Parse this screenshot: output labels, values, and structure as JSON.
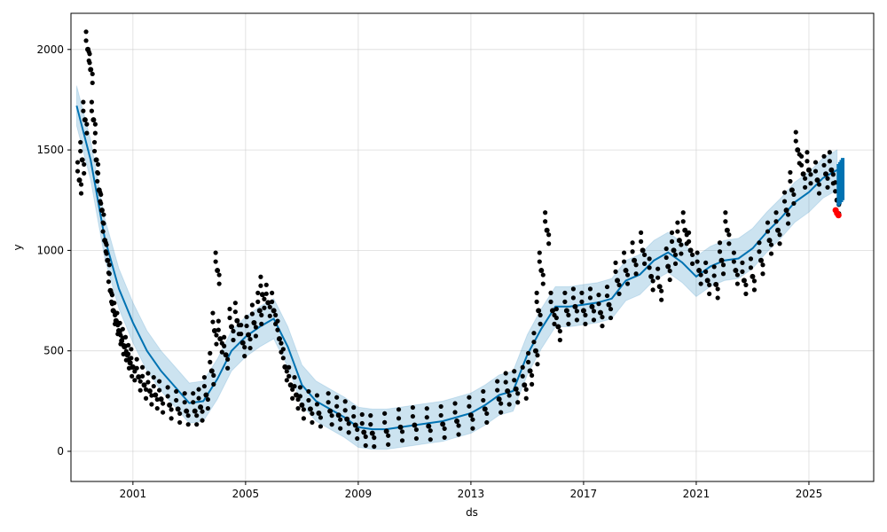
{
  "chart_data": {
    "type": "line",
    "title": "",
    "xlabel": "ds",
    "ylabel": "y",
    "xlim": [
      1998.8,
      2027.3
    ],
    "ylim": [
      -150,
      2180
    ],
    "grid": true,
    "legend": "none",
    "x_ticks": [
      {
        "value": 2001,
        "label": "2001"
      },
      {
        "value": 2005,
        "label": "2005"
      },
      {
        "value": 2009,
        "label": "2009"
      },
      {
        "value": 2013,
        "label": "2013"
      },
      {
        "value": 2017,
        "label": "2017"
      },
      {
        "value": 2021,
        "label": "2021"
      },
      {
        "value": 2025,
        "label": "2025"
      }
    ],
    "y_ticks": [
      {
        "value": 0,
        "label": "0"
      },
      {
        "value": 500,
        "label": "500"
      },
      {
        "value": 1000,
        "label": "1000"
      },
      {
        "value": 1500,
        "label": "1500"
      },
      {
        "value": 2000,
        "label": "2000"
      }
    ],
    "colors": {
      "observed": "#000000",
      "forecast_line": "#0072B2",
      "uncertainty_band": "#0072B2",
      "highlight": "#ff0000",
      "grid": "#cccccc"
    },
    "series": [
      {
        "name": "",
        "kind": "observed_points",
        "x": [
          1999.1,
          1999.2,
          1999.3,
          1999.4,
          1999.5,
          1999.6,
          1999.7,
          1999.8,
          1999.9,
          2000.0,
          2000.1,
          2000.2,
          2000.3,
          2000.4,
          2000.5,
          2000.6,
          2000.7,
          2000.8,
          2000.9,
          2001.0,
          2001.2,
          2001.4,
          2001.6,
          2001.8,
          2002.0,
          2002.3,
          2002.6,
          2002.9,
          2003.2,
          2003.4,
          2003.6,
          2003.8,
          2003.9,
          2004.0,
          2004.1,
          2004.3,
          2004.5,
          2004.7,
          2004.9,
          2005.1,
          2005.3,
          2005.5,
          2005.6,
          2005.8,
          2006.0,
          2006.2,
          2006.4,
          2006.6,
          2006.8,
          2007.0,
          2007.3,
          2007.6,
          2008.0,
          2008.3,
          2008.6,
          2008.9,
          2009.2,
          2009.5,
          2010.0,
          2010.5,
          2011.0,
          2011.5,
          2012.0,
          2012.5,
          2013.0,
          2013.5,
          2014.0,
          2014.3,
          2014.6,
          2014.9,
          2015.1,
          2015.3,
          2015.4,
          2015.5,
          2015.7,
          2015.9,
          2016.1,
          2016.4,
          2016.7,
          2017.0,
          2017.3,
          2017.6,
          2017.9,
          2018.2,
          2018.5,
          2018.8,
          2019.1,
          2019.4,
          2019.7,
          2020.0,
          2020.2,
          2020.4,
          2020.6,
          2020.8,
          2021.1,
          2021.4,
          2021.7,
          2021.9,
          2022.1,
          2022.4,
          2022.7,
          2023.0,
          2023.3,
          2023.6,
          2023.9,
          2024.2,
          2024.4,
          2024.6,
          2024.8,
          2025.0,
          2025.3,
          2025.6,
          2025.8,
          2026.0
        ],
        "y": [
          1350,
          1450,
          1650,
          2000,
          1900,
          1650,
          1450,
          1300,
          1200,
          1050,
          950,
          800,
          700,
          650,
          600,
          550,
          520,
          480,
          440,
          420,
          370,
          330,
          300,
          280,
          260,
          230,
          210,
          200,
          200,
          220,
          280,
          400,
          600,
          900,
          560,
          480,
          620,
          650,
          540,
          580,
          640,
          700,
          780,
          740,
          700,
          560,
          420,
          330,
          280,
          230,
          210,
          190,
          200,
          180,
          160,
          130,
          95,
          90,
          100,
          120,
          130,
          125,
          135,
          150,
          180,
          210,
          260,
          300,
          310,
          330,
          400,
          500,
          700,
          900,
          1100,
          700,
          620,
          700,
          720,
          700,
          720,
          690,
          730,
          850,
          900,
          950,
          1000,
          870,
          820,
          920,
          1000,
          1050,
          1100,
          1000,
          900,
          850,
          830,
          950,
          1100,
          900,
          850,
          870,
          950,
          1050,
          1100,
          1200,
          1300,
          1500,
          1380,
          1400,
          1350,
          1380,
          1400,
          1250
        ]
      },
      {
        "name": "",
        "kind": "trend_line",
        "x": [
          1999.0,
          1999.5,
          2000.0,
          2000.5,
          2001.0,
          2001.5,
          2002.0,
          2002.5,
          2003.0,
          2003.5,
          2004.0,
          2004.5,
          2005.0,
          2005.5,
          2006.0,
          2006.5,
          2007.0,
          2007.5,
          2008.0,
          2008.5,
          2009.0,
          2009.5,
          2010.0,
          2010.5,
          2011.0,
          2011.5,
          2012.0,
          2012.5,
          2013.0,
          2013.5,
          2014.0,
          2014.5,
          2015.0,
          2015.5,
          2016.0,
          2016.5,
          2017.0,
          2017.5,
          2018.0,
          2018.5,
          2019.0,
          2019.5,
          2020.0,
          2020.5,
          2021.0,
          2021.5,
          2022.0,
          2022.5,
          2023.0,
          2023.5,
          2024.0,
          2024.5,
          2025.0,
          2025.5,
          2026.0
        ],
        "y": [
          1720,
          1450,
          1060,
          810,
          640,
          500,
          400,
          320,
          240,
          250,
          360,
          500,
          570,
          620,
          660,
          520,
          330,
          250,
          210,
          170,
          120,
          110,
          110,
          120,
          130,
          140,
          150,
          170,
          190,
          230,
          280,
          300,
          480,
          610,
          720,
          720,
          730,
          740,
          760,
          850,
          880,
          950,
          990,
          940,
          870,
          920,
          950,
          960,
          1010,
          1090,
          1160,
          1240,
          1290,
          1360,
          1400
        ]
      },
      {
        "name": "",
        "kind": "uncertainty_band",
        "x": [
          1999.0,
          1999.5,
          2000.0,
          2000.5,
          2001.0,
          2001.5,
          2002.0,
          2002.5,
          2003.0,
          2003.5,
          2004.0,
          2004.5,
          2005.0,
          2005.5,
          2006.0,
          2006.5,
          2007.0,
          2007.5,
          2008.0,
          2008.5,
          2009.0,
          2009.5,
          2010.0,
          2010.5,
          2011.0,
          2011.5,
          2012.0,
          2012.5,
          2013.0,
          2013.5,
          2014.0,
          2014.5,
          2015.0,
          2015.5,
          2016.0,
          2016.5,
          2017.0,
          2017.5,
          2018.0,
          2018.5,
          2019.0,
          2019.5,
          2020.0,
          2020.5,
          2021.0,
          2021.5,
          2022.0,
          2022.5,
          2023.0,
          2023.5,
          2024.0,
          2024.5,
          2025.0,
          2025.5,
          2026.0
        ],
        "lower": [
          1620,
          1350,
          960,
          710,
          540,
          400,
          300,
          220,
          140,
          150,
          260,
          400,
          470,
          520,
          560,
          420,
          230,
          150,
          110,
          70,
          20,
          10,
          10,
          20,
          30,
          40,
          50,
          70,
          90,
          130,
          180,
          200,
          380,
          510,
          620,
          620,
          630,
          640,
          660,
          750,
          780,
          850,
          890,
          840,
          770,
          820,
          850,
          860,
          910,
          990,
          1060,
          1140,
          1190,
          1260,
          1300
        ],
        "upper": [
          1820,
          1550,
          1160,
          910,
          740,
          600,
          500,
          420,
          340,
          350,
          460,
          600,
          670,
          720,
          760,
          620,
          430,
          350,
          310,
          270,
          220,
          210,
          210,
          220,
          230,
          240,
          250,
          270,
          290,
          330,
          380,
          400,
          580,
          710,
          820,
          820,
          830,
          840,
          860,
          950,
          980,
          1050,
          1090,
          1040,
          970,
          1020,
          1050,
          1060,
          1110,
          1190,
          1260,
          1340,
          1390,
          1460,
          1500
        ]
      },
      {
        "name": "",
        "kind": "forecast_tail",
        "x": [
          2026.05,
          2026.1,
          2026.15,
          2026.2
        ],
        "lower": [
          1220,
          1230,
          1240,
          1250
        ],
        "upper": [
          1430,
          1440,
          1450,
          1460
        ]
      },
      {
        "name": "",
        "kind": "highlight_points",
        "x": [
          2025.95,
          2026.0,
          2026.05
        ],
        "y": [
          1200,
          1185,
          1175
        ]
      }
    ]
  }
}
